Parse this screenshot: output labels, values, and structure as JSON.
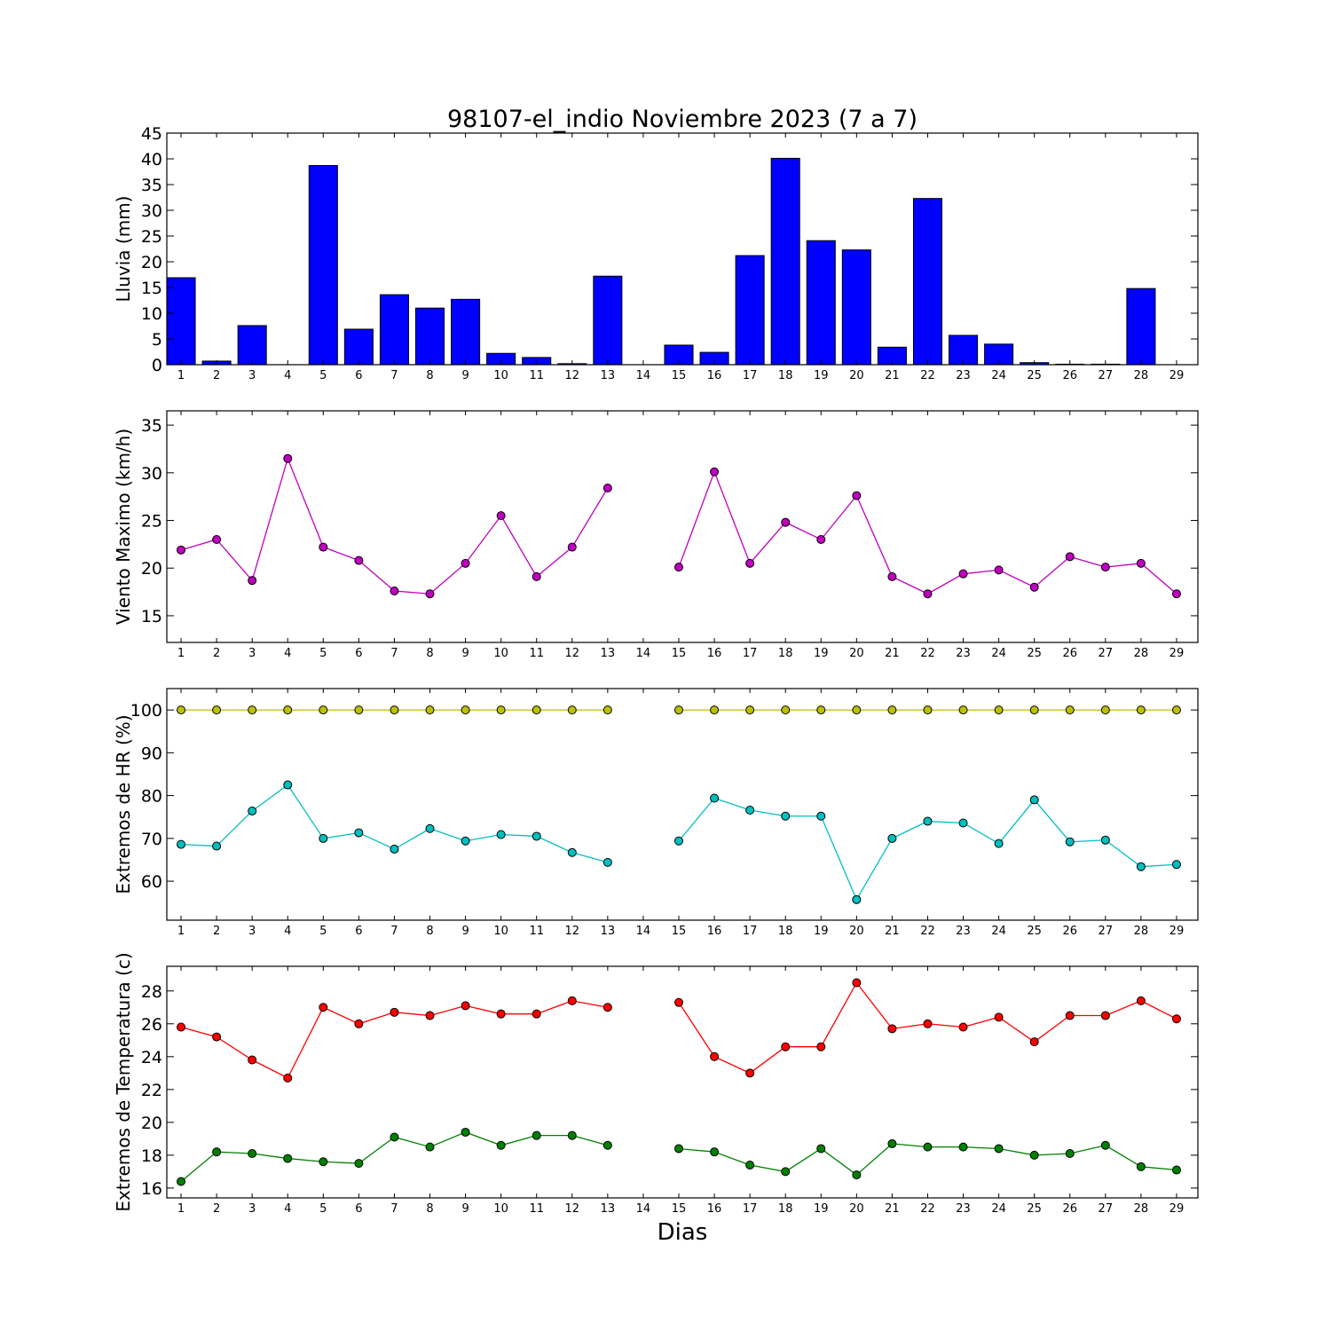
{
  "chart_data": [
    {
      "type": "bar",
      "title": "98107-el_indio Noviembre 2023  (7 a 7)",
      "xlabel": "",
      "ylabel": "Lluvia (mm)",
      "categories": [
        1,
        2,
        3,
        4,
        5,
        6,
        7,
        8,
        9,
        10,
        11,
        12,
        13,
        14,
        15,
        16,
        17,
        18,
        19,
        20,
        21,
        22,
        23,
        24,
        25,
        26,
        27,
        28,
        29
      ],
      "values": [
        16.9,
        0.7,
        7.6,
        0,
        38.7,
        6.9,
        13.6,
        11.0,
        12.7,
        2.2,
        1.4,
        0.2,
        17.2,
        null,
        3.8,
        2.4,
        21.2,
        40.1,
        24.1,
        22.3,
        3.4,
        32.3,
        5.7,
        4.0,
        0.4,
        0.1,
        0.1,
        14.8,
        0
      ],
      "ylim": [
        0,
        45
      ],
      "yticks": [
        0,
        5,
        10,
        15,
        20,
        25,
        30,
        35,
        40,
        45
      ],
      "color": "#0000ff"
    },
    {
      "type": "line",
      "title": "",
      "xlabel": "",
      "ylabel": "Viento Maximo (km/h)",
      "x": [
        1,
        2,
        3,
        4,
        5,
        6,
        7,
        8,
        9,
        10,
        11,
        12,
        13,
        14,
        15,
        16,
        17,
        18,
        19,
        20,
        21,
        22,
        23,
        24,
        25,
        26,
        27,
        28,
        29
      ],
      "series": [
        {
          "values": [
            21.9,
            23.0,
            18.7,
            31.5,
            22.2,
            20.8,
            17.6,
            17.3,
            20.5,
            25.5,
            19.1,
            22.2,
            28.4,
            null,
            20.1,
            30.1,
            20.5,
            24.8,
            23.0,
            27.6,
            19.1,
            17.3,
            19.4,
            19.8,
            18.0,
            21.2,
            20.1,
            20.5,
            17.3
          ],
          "color": "#bf00bf"
        }
      ],
      "ylim": [
        12.2,
        36.5
      ],
      "yticks": [
        15,
        20,
        25,
        30,
        35
      ]
    },
    {
      "type": "line",
      "title": "",
      "xlabel": "",
      "ylabel": "Extremos de HR (%)",
      "x": [
        1,
        2,
        3,
        4,
        5,
        6,
        7,
        8,
        9,
        10,
        11,
        12,
        13,
        14,
        15,
        16,
        17,
        18,
        19,
        20,
        21,
        22,
        23,
        24,
        25,
        26,
        27,
        28,
        29
      ],
      "series": [
        {
          "values": [
            100,
            100,
            100,
            100,
            100,
            100,
            100,
            100,
            100,
            100,
            100,
            100,
            100,
            null,
            100,
            100,
            100,
            100,
            100,
            100,
            100,
            100,
            100,
            100,
            100,
            100,
            100,
            100,
            100
          ],
          "color": "#bfbf00"
        },
        {
          "values": [
            68.6,
            68.2,
            76.4,
            82.5,
            70.0,
            71.3,
            67.5,
            72.3,
            69.4,
            70.9,
            70.5,
            66.7,
            64.4,
            null,
            69.4,
            79.4,
            76.6,
            75.2,
            75.2,
            55.7,
            70.0,
            74.0,
            73.6,
            68.8,
            79.0,
            69.2,
            69.6,
            63.4,
            63.9
          ],
          "color": "#00bfbf"
        }
      ],
      "ylim": [
        50.9,
        105
      ],
      "yticks": [
        60,
        70,
        80,
        90,
        100
      ]
    },
    {
      "type": "line",
      "title": "",
      "xlabel": "Dias",
      "ylabel": "Extremos de Temperatura (c)",
      "x": [
        1,
        2,
        3,
        4,
        5,
        6,
        7,
        8,
        9,
        10,
        11,
        12,
        13,
        14,
        15,
        16,
        17,
        18,
        19,
        20,
        21,
        22,
        23,
        24,
        25,
        26,
        27,
        28,
        29
      ],
      "series": [
        {
          "values": [
            25.8,
            25.2,
            23.8,
            22.7,
            27.0,
            26.0,
            26.7,
            26.5,
            27.1,
            26.6,
            26.6,
            27.4,
            27.0,
            null,
            27.3,
            24.0,
            23.0,
            24.6,
            24.6,
            28.5,
            25.7,
            26.0,
            25.8,
            26.4,
            24.9,
            26.5,
            26.5,
            27.4,
            26.3
          ],
          "color": "#ff0000"
        },
        {
          "values": [
            16.4,
            18.2,
            18.1,
            17.8,
            17.6,
            17.5,
            19.1,
            18.5,
            19.4,
            18.6,
            19.2,
            19.2,
            18.6,
            null,
            18.4,
            18.2,
            17.4,
            17.0,
            18.4,
            16.8,
            18.7,
            18.5,
            18.5,
            18.4,
            18.0,
            18.1,
            18.6,
            17.3,
            17.1
          ],
          "color": "#008000"
        }
      ],
      "ylim": [
        15.4,
        29.5
      ],
      "yticks": [
        16,
        18,
        20,
        22,
        24,
        26,
        28
      ]
    }
  ]
}
